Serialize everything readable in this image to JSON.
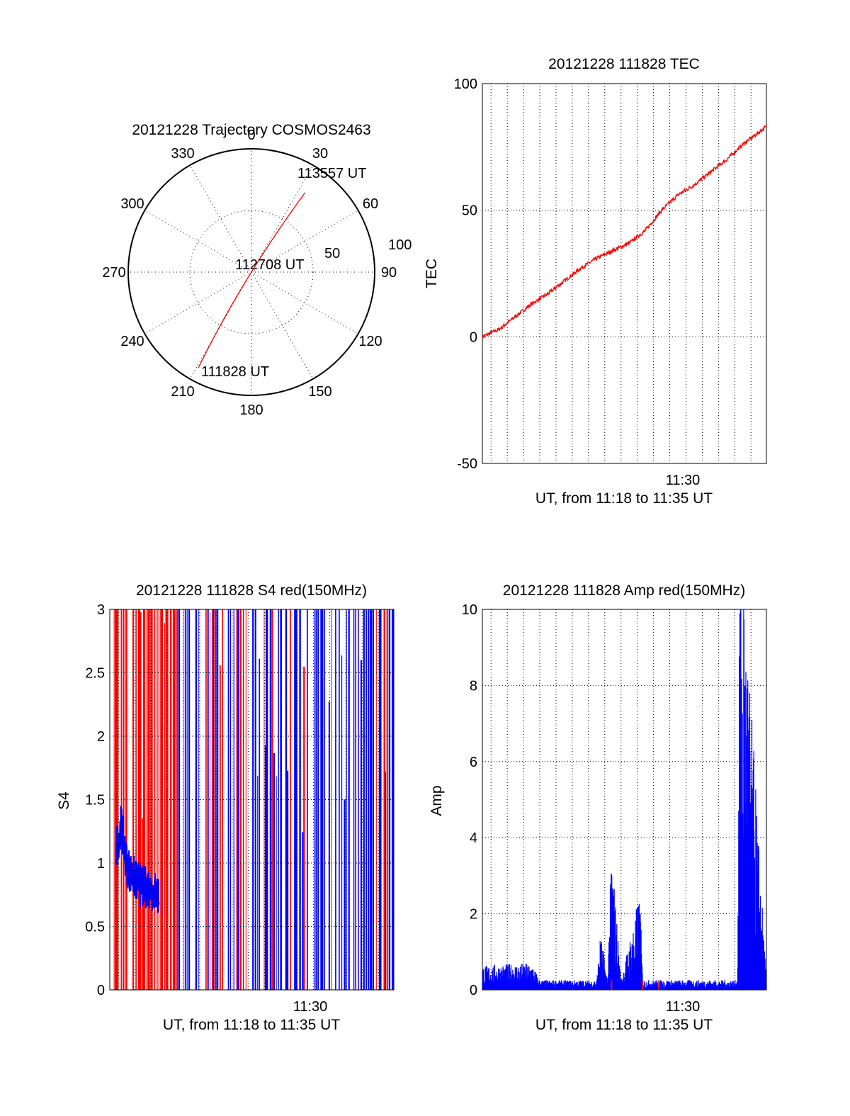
{
  "colors": {
    "red": "#ff0000",
    "blue": "#0000ff",
    "axis": "#000000",
    "grid": "#000000"
  },
  "chart_data": [
    {
      "type": "polar",
      "title": "20121228 Trajectory COSMOS2463",
      "angle_labels": [
        "0",
        "30",
        "60",
        "90",
        "120",
        "150",
        "180",
        "210",
        "240",
        "270",
        "300",
        "330"
      ],
      "radial_labels": [
        "50",
        "100"
      ],
      "rlim": [
        0,
        100
      ],
      "grid": true,
      "points": [
        {
          "label": "111828 UT",
          "az": 209,
          "el": 10
        },
        {
          "label": "112708 UT",
          "az": 200,
          "el": 88
        },
        {
          "label": "113557 UT",
          "az": 34,
          "el": 20
        }
      ],
      "series_color": "red"
    },
    {
      "type": "line",
      "title": "20121228 111828 TEC",
      "xlabel": "UT, from 11:18 to 11:35 UT",
      "ylabel": "TEC",
      "ylim": [
        -50,
        100
      ],
      "yticks": [
        "100",
        "50",
        "0",
        "-50"
      ],
      "xtick": "11:30",
      "grid": true,
      "series": [
        {
          "color": "red",
          "x": [
            "11:18:28",
            "11:19:30",
            "11:20:30",
            "11:21:30",
            "11:22:30",
            "11:23:30",
            "11:24:30",
            "11:25:30",
            "11:26:30",
            "11:27:30",
            "11:28:30",
            "11:29:30",
            "11:30:30",
            "11:31:30",
            "11:32:30",
            "11:33:30",
            "11:34:30",
            "11:35:57"
          ],
          "y": [
            0,
            3,
            8,
            13,
            17,
            22,
            27,
            31,
            34,
            37,
            42,
            50,
            56,
            60,
            65,
            70,
            76,
            83
          ]
        }
      ]
    },
    {
      "type": "line",
      "title": "20121228 111828 S4 red(150MHz)",
      "xlabel": "UT, from 11:18 to 11:35 UT",
      "ylabel": "S4",
      "ylim": [
        0,
        3
      ],
      "yticks": [
        "3",
        "2.5",
        "2",
        "1.5",
        "1",
        "0.5",
        "0"
      ],
      "xtick": "11:30",
      "grid": true,
      "series": [
        {
          "color": "blue",
          "x": [
            "11:18:50",
            "11:19:10",
            "11:19:30",
            "11:19:50",
            "11:20:10",
            "11:20:30",
            "11:20:50",
            "11:21:10",
            "11:21:30"
          ],
          "y": [
            1.1,
            1.3,
            1.0,
            0.9,
            0.85,
            0.8,
            0.82,
            0.78,
            0.75
          ]
        }
      ]
    },
    {
      "type": "line",
      "title": "20121228 111828 Amp red(150MHz)",
      "xlabel": "UT, from 11:18 to 11:35 UT",
      "ylabel": "Amp",
      "ylim": [
        0,
        10
      ],
      "yticks": [
        "10",
        "8",
        "6",
        "4",
        "2",
        "0"
      ],
      "xtick": "11:30",
      "grid": true,
      "series": [
        {
          "color": "blue",
          "x": [
            "11:18:28",
            "11:21:30",
            "11:22:00",
            "11:25:30",
            "11:25:45",
            "11:26:10",
            "11:26:25",
            "11:27:00",
            "11:28:10",
            "11:28:20",
            "11:29:00",
            "11:34:10",
            "11:34:20",
            "11:35:57"
          ],
          "y": [
            0.5,
            0.55,
            0.2,
            0.2,
            1.2,
            0.2,
            3.0,
            0.2,
            2.0,
            0.2,
            0.2,
            0.2,
            9.9,
            0.2
          ]
        }
      ]
    }
  ]
}
